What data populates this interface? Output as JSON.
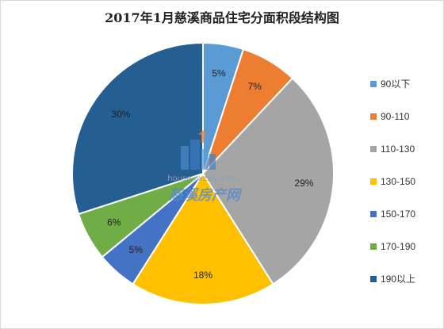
{
  "chart_data": {
    "type": "pie",
    "title": "2017年1月慈溪商品住宅分面积段结构图",
    "categories": [
      "90以下",
      "90-110",
      "110-130",
      "130-150",
      "150-170",
      "170-190",
      "190以上"
    ],
    "values": [
      5,
      7,
      29,
      18,
      5,
      6,
      30
    ],
    "labels": [
      "5%",
      "7%",
      "29%",
      "18%",
      "5%",
      "6%",
      "30%"
    ],
    "colors": [
      "#5b9bd5",
      "#ed7d31",
      "#a5a5a5",
      "#ffc000",
      "#4472c4",
      "#70ad47",
      "#255e91"
    ],
    "legend_position": "right"
  },
  "watermark": {
    "url": "house.cxzxip.com",
    "name": "慈溪房产网",
    "icon": "building-icon"
  }
}
